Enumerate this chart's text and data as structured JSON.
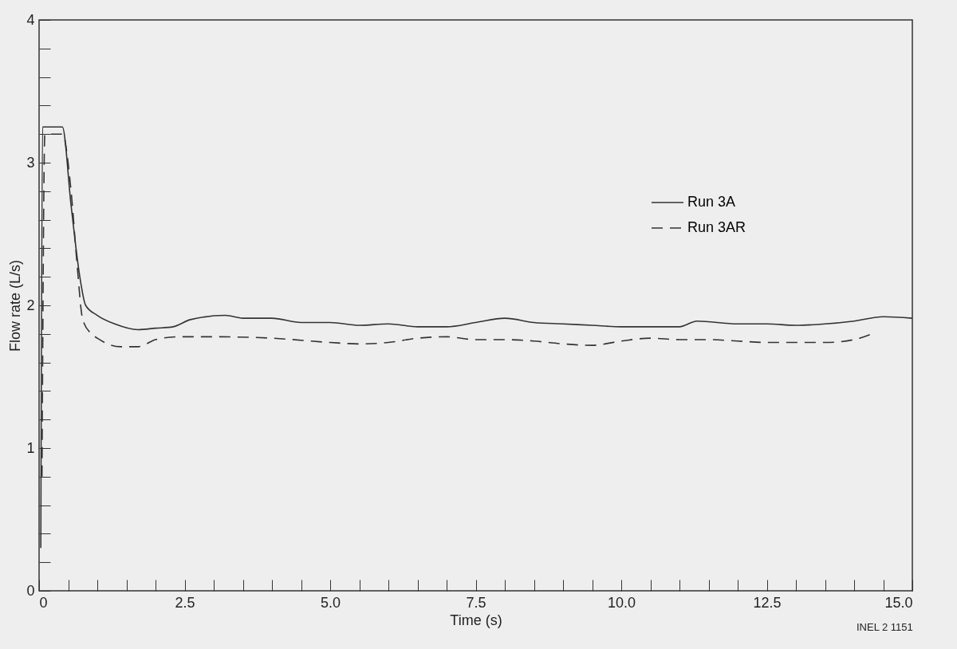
{
  "chart_data": {
    "type": "line",
    "xlabel": "Time (s)",
    "ylabel": "Flow rate (L/s)",
    "xlim": [
      0,
      15
    ],
    "ylim": [
      0,
      4
    ],
    "xticks": [
      0,
      {
        "value": 0.5,
        "label": null
      },
      {
        "value": 1,
        "label": null
      },
      {
        "value": 1.5,
        "label": null
      },
      {
        "value": 2,
        "label": null
      },
      2.5,
      {
        "value": 3,
        "label": null
      },
      {
        "value": 3.5,
        "label": null
      },
      {
        "value": 4,
        "label": null
      },
      {
        "value": 4.5,
        "label": null
      },
      {
        "value": 5,
        "label": "5.0"
      },
      {
        "value": 5.5,
        "label": null
      },
      {
        "value": 6,
        "label": null
      },
      {
        "value": 6.5,
        "label": null
      },
      {
        "value": 7,
        "label": null
      },
      7.5,
      {
        "value": 8,
        "label": null
      },
      {
        "value": 8.5,
        "label": null
      },
      {
        "value": 9,
        "label": null
      },
      {
        "value": 9.5,
        "label": null
      },
      {
        "value": 10,
        "label": "10.0"
      },
      {
        "value": 10.5,
        "label": null
      },
      {
        "value": 11,
        "label": null
      },
      {
        "value": 11.5,
        "label": null
      },
      {
        "value": 12,
        "label": null
      },
      12.5,
      {
        "value": 13,
        "label": null
      },
      {
        "value": 13.5,
        "label": null
      },
      {
        "value": 14,
        "label": null
      },
      {
        "value": 14.5,
        "label": null
      },
      {
        "value": 15,
        "label": "15.0"
      }
    ],
    "yticks": [
      0,
      {
        "value": 0.2,
        "label": null
      },
      {
        "value": 0.4,
        "label": null
      },
      {
        "value": 0.6,
        "label": null
      },
      {
        "value": 0.8,
        "label": null
      },
      1,
      {
        "value": 1.2,
        "label": null
      },
      {
        "value": 1.4,
        "label": null
      },
      {
        "value": 1.6,
        "label": null
      },
      {
        "value": 1.8,
        "label": null
      },
      2,
      {
        "value": 2.2,
        "label": null
      },
      {
        "value": 2.4,
        "label": null
      },
      {
        "value": 2.6,
        "label": null
      },
      {
        "value": 2.8,
        "label": null
      },
      3,
      {
        "value": 3.2,
        "label": null
      },
      {
        "value": 3.4,
        "label": null
      },
      {
        "value": 3.6,
        "label": null
      },
      {
        "value": 3.8,
        "label": null
      },
      4
    ],
    "legend": "top right",
    "grid": false,
    "annotations": [
      "INEL 2 1151"
    ],
    "series": [
      {
        "name": "Run 3A",
        "color": "#333333",
        "line_style": "solid",
        "x": [
          0.03,
          0.06,
          0.4,
          0.55,
          0.7,
          0.8,
          1.0,
          1.3,
          1.7,
          2.0,
          2.3,
          2.6,
          3.2,
          3.5,
          4.0,
          4.5,
          5.0,
          5.5,
          6.0,
          6.5,
          7.0,
          7.5,
          8.0,
          8.5,
          9.0,
          9.5,
          10.0,
          10.5,
          11.0,
          11.3,
          12.0,
          12.5,
          13.0,
          13.5,
          14.0,
          14.5,
          15.0
        ],
        "values": [
          0.3,
          3.25,
          3.25,
          2.7,
          2.2,
          2.0,
          1.93,
          1.87,
          1.83,
          1.84,
          1.85,
          1.9,
          1.93,
          1.91,
          1.91,
          1.88,
          1.88,
          1.86,
          1.87,
          1.85,
          1.85,
          1.88,
          1.91,
          1.88,
          1.87,
          1.86,
          1.85,
          1.85,
          1.85,
          1.89,
          1.87,
          1.87,
          1.86,
          1.87,
          1.89,
          1.92,
          1.91
        ]
      },
      {
        "name": "Run 3AR",
        "color": "#333333",
        "line_style": "dashed",
        "x": [
          0.05,
          0.1,
          0.4,
          0.55,
          0.65,
          0.75,
          0.9,
          1.0,
          1.4,
          1.7,
          2.0,
          2.4,
          3.0,
          4.0,
          5.0,
          5.5,
          6.0,
          6.5,
          7.0,
          7.5,
          8.0,
          8.5,
          9.0,
          9.5,
          10.0,
          10.5,
          11.0,
          11.5,
          12.0,
          12.5,
          13.0,
          13.5,
          14.0,
          14.3
        ],
        "values": [
          0.8,
          3.2,
          3.2,
          2.8,
          2.3,
          1.9,
          1.8,
          1.77,
          1.71,
          1.71,
          1.76,
          1.78,
          1.78,
          1.77,
          1.74,
          1.73,
          1.74,
          1.77,
          1.78,
          1.76,
          1.76,
          1.75,
          1.73,
          1.72,
          1.75,
          1.77,
          1.76,
          1.76,
          1.75,
          1.74,
          1.74,
          1.74,
          1.76,
          1.8
        ]
      }
    ]
  }
}
